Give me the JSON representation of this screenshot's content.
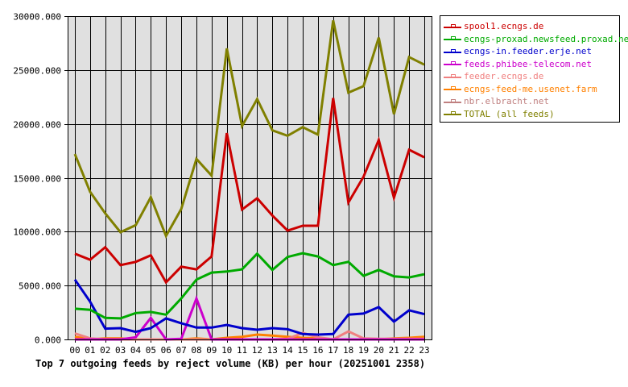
{
  "chart_data": {
    "type": "line",
    "title": "Top 7 outgoing feeds by reject volume (KB) per hour (20251001 2358)",
    "xlabel": "",
    "ylabel": "",
    "ylim": [
      0,
      30000
    ],
    "yticks": [
      "0.000",
      "5000.000",
      "10000.000",
      "15000.000",
      "20000.000",
      "25000.000",
      "30000.000"
    ],
    "grid": true,
    "legend_position": "right",
    "categories": [
      "00",
      "01",
      "02",
      "03",
      "04",
      "05",
      "06",
      "07",
      "08",
      "09",
      "10",
      "11",
      "12",
      "13",
      "14",
      "15",
      "16",
      "17",
      "18",
      "19",
      "20",
      "21",
      "22",
      "23"
    ],
    "series": [
      {
        "name": "spool1.ecngs.de",
        "color": "#cc0000",
        "values": [
          7950,
          7400,
          8550,
          6900,
          7200,
          7800,
          5300,
          6750,
          6500,
          7700,
          19150,
          12050,
          13100,
          11500,
          10100,
          10550,
          10550,
          22400,
          12700,
          15100,
          18500,
          13150,
          17600,
          16900
        ]
      },
      {
        "name": "ecngs-proxad.newsfeed.proxad.net",
        "color": "#00aa00",
        "values": [
          2850,
          2750,
          2000,
          1950,
          2450,
          2550,
          2300,
          3800,
          5550,
          6200,
          6300,
          6500,
          7950,
          6450,
          7650,
          8000,
          7700,
          6900,
          7200,
          5900,
          6450,
          5850,
          5750,
          6050
        ]
      },
      {
        "name": "ecngs-in.feeder.erje.net",
        "color": "#0000cc",
        "values": [
          5550,
          3500,
          1000,
          1050,
          700,
          1050,
          1950,
          1500,
          1100,
          1100,
          1350,
          1050,
          900,
          1050,
          950,
          500,
          450,
          500,
          2300,
          2400,
          3000,
          1650,
          2700,
          2350
        ]
      },
      {
        "name": "feeds.phibee-telecom.net",
        "color": "#cc00cc",
        "values": [
          0,
          0,
          0,
          0,
          200,
          2000,
          0,
          50,
          3800,
          0,
          0,
          0,
          0,
          0,
          0,
          0,
          0,
          0,
          0,
          0,
          0,
          0,
          0,
          0
        ]
      },
      {
        "name": "feeder.ecngs.de",
        "color": "#f08080",
        "values": [
          550,
          100,
          0,
          0,
          0,
          0,
          0,
          0,
          0,
          0,
          0,
          0,
          0,
          0,
          50,
          600,
          200,
          0,
          750,
          100,
          50,
          50,
          50,
          50
        ]
      },
      {
        "name": "ecngs-feed-me.usenet.farm",
        "color": "#ff8000",
        "values": [
          250,
          0,
          100,
          100,
          0,
          0,
          0,
          0,
          100,
          0,
          150,
          250,
          450,
          350,
          250,
          150,
          100,
          0,
          0,
          0,
          0,
          100,
          150,
          250
        ]
      },
      {
        "name": "nbr.elbracht.net",
        "color": "#c08080",
        "values": [
          0,
          0,
          0,
          0,
          0,
          0,
          0,
          0,
          0,
          0,
          0,
          0,
          0,
          0,
          0,
          0,
          0,
          0,
          0,
          0,
          0,
          0,
          0,
          0
        ]
      },
      {
        "name": "TOTAL (all feeds)",
        "color": "#808000",
        "values": [
          17200,
          13700,
          11700,
          9950,
          10600,
          13200,
          9600,
          12100,
          16750,
          15200,
          27000,
          19800,
          22300,
          19400,
          18900,
          19700,
          19000,
          29600,
          22900,
          23500,
          28000,
          20900,
          26200,
          25500
        ]
      }
    ]
  },
  "legend": {
    "items": [
      {
        "label": "spool1.ecngs.de",
        "color": "#cc0000"
      },
      {
        "label": "ecngs-proxad.newsfeed.proxad.net",
        "color": "#00aa00"
      },
      {
        "label": "ecngs-in.feeder.erje.net",
        "color": "#0000cc"
      },
      {
        "label": "feeds.phibee-telecom.net",
        "color": "#cc00cc"
      },
      {
        "label": "feeder.ecngs.de",
        "color": "#f08080"
      },
      {
        "label": "ecngs-feed-me.usenet.farm",
        "color": "#ff8000"
      },
      {
        "label": "nbr.elbracht.net",
        "color": "#c08080"
      },
      {
        "label": "TOTAL (all feeds)",
        "color": "#808000"
      }
    ]
  },
  "style": {
    "plot_background": "#e0e0e0",
    "grid_color": "#000000",
    "page_background": "#ffffff"
  }
}
